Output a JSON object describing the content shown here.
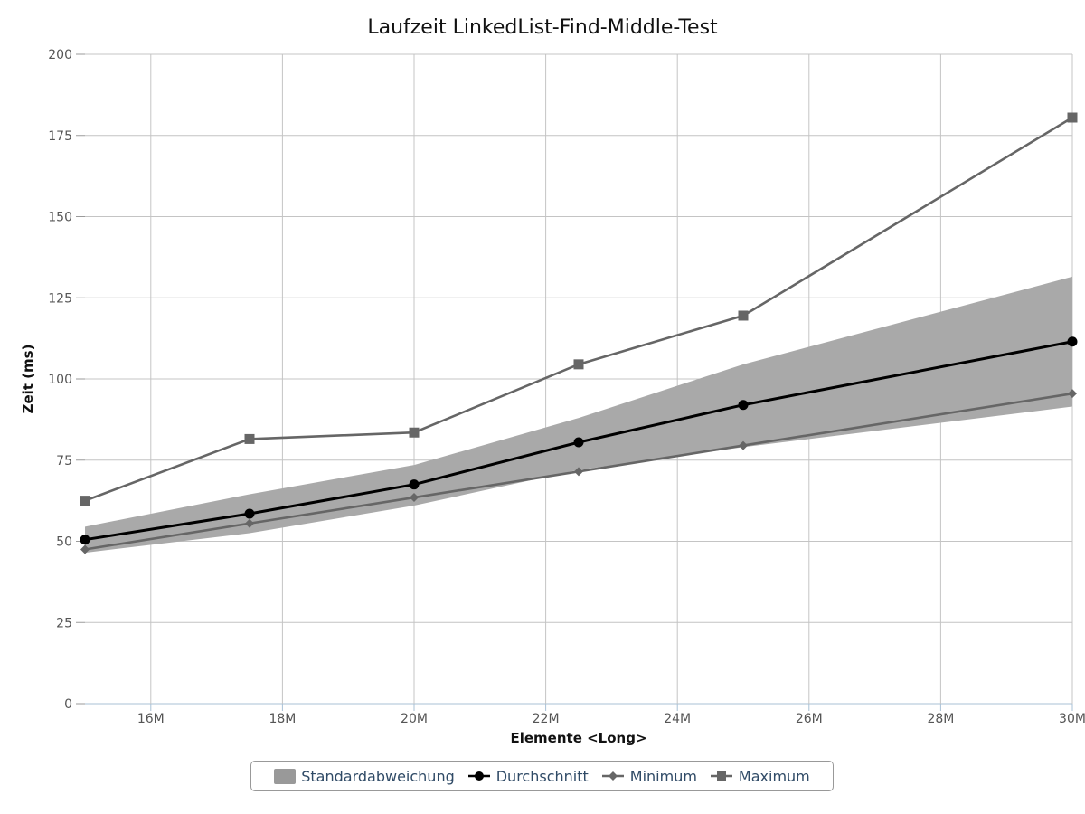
{
  "chart_data": {
    "type": "line",
    "title": "Laufzeit LinkedList-Find-Middle-Test",
    "xlabel": "Elemente <Long>",
    "ylabel": "Zeit (ms)",
    "xlim": [
      15000000,
      30000000
    ],
    "ylim": [
      0,
      200
    ],
    "x_ticks": [
      16000000,
      18000000,
      20000000,
      22000000,
      24000000,
      26000000,
      28000000,
      30000000
    ],
    "x_tick_labels": [
      "16M",
      "18M",
      "20M",
      "22M",
      "24M",
      "26M",
      "28M",
      "30M"
    ],
    "y_ticks": [
      0,
      25,
      50,
      75,
      100,
      125,
      150,
      175,
      200
    ],
    "y_tick_labels": [
      "0",
      "25",
      "50",
      "75",
      "100",
      "125",
      "150",
      "175",
      "200"
    ],
    "x": [
      15000000,
      17500000,
      20000000,
      22500000,
      25000000,
      30000000
    ],
    "band": {
      "name": "Standardabweichung",
      "color": "#a9a9a9",
      "lower": [
        46.5,
        52.5,
        61,
        72,
        79,
        91.5
      ],
      "upper": [
        54.5,
        64.5,
        73.5,
        88,
        104.5,
        131.5
      ]
    },
    "series": [
      {
        "name": "Durchschnitt",
        "color": "#000000",
        "marker": "circle",
        "values": [
          50.5,
          58.5,
          67.5,
          80.5,
          92,
          111.5
        ]
      },
      {
        "name": "Minimum",
        "color": "#666666",
        "marker": "diamond",
        "values": [
          47.5,
          55.5,
          63.5,
          71.5,
          79.5,
          95.5
        ]
      },
      {
        "name": "Maximum",
        "color": "#666666",
        "marker": "square",
        "values": [
          62.5,
          81.5,
          83.5,
          104.5,
          119.5,
          180.5
        ]
      }
    ],
    "grid": true,
    "legend_position": "bottom-center"
  }
}
